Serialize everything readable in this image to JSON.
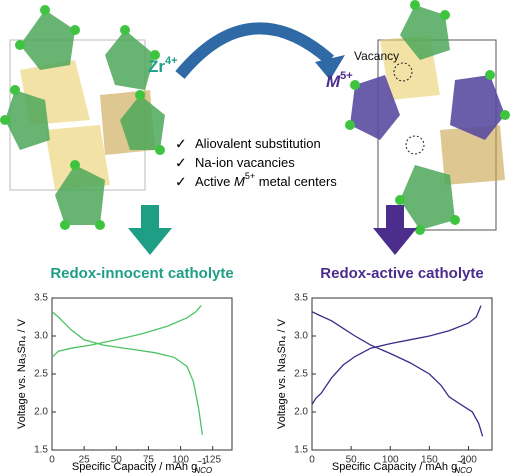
{
  "labels": {
    "zr": {
      "base": "Zr",
      "sup": "4+"
    },
    "m": {
      "base": "M",
      "sup": "5+"
    },
    "vacancy": "Vacancy"
  },
  "bullets": {
    "check": "✓",
    "items": [
      {
        "pre": "Aliovalent substitution"
      },
      {
        "pre": "Na-ion vacancies"
      },
      {
        "pre": "Active ",
        "em": "M",
        "sup": "5+",
        "post": " metal centers"
      }
    ]
  },
  "chart_data": [
    {
      "type": "line",
      "title": "Redox-innocent catholyte",
      "title_color": "#1f9e86",
      "y_label": "Voltage vs. Na₃Sn₄ / V",
      "x_label": {
        "text": "Specific Capacity / mAh g",
        "sup": "−1",
        "sub": "NCO"
      },
      "xlim": [
        0,
        140
      ],
      "xticks": [
        0,
        25,
        50,
        75,
        100,
        125
      ],
      "ylim": [
        1.5,
        3.5
      ],
      "yticks": [
        1.5,
        {
          "value": 2,
          "label": "2.0"
        },
        2.5,
        {
          "value": 3,
          "label": "3.0"
        },
        3.5
      ],
      "series": [
        {
          "color": "#4cc463",
          "x": [
            0,
            5,
            15,
            30,
            50,
            70,
            90,
            105,
            112,
            116
          ],
          "values": [
            2.72,
            2.8,
            2.84,
            2.88,
            2.95,
            3.03,
            3.13,
            3.24,
            3.32,
            3.4
          ]
        },
        {
          "color": "#4cc463",
          "x": [
            0,
            5,
            15,
            25,
            40,
            60,
            80,
            95,
            105,
            110,
            114,
            117
          ],
          "values": [
            3.32,
            3.25,
            3.08,
            2.95,
            2.88,
            2.83,
            2.78,
            2.72,
            2.6,
            2.4,
            2.05,
            1.7
          ]
        }
      ]
    },
    {
      "type": "line",
      "title": "Redox-active catholyte",
      "title_color": "#4a2d8c",
      "y_label": "Voltage vs. Na₃Sn₄ / V",
      "x_label": {
        "text": "Specific Capacity / mAh g",
        "sup": "−1",
        "sub": "NCO"
      },
      "xlim": [
        0,
        230
      ],
      "xticks": [
        0,
        50,
        100,
        150,
        200
      ],
      "ylim": [
        1.5,
        3.5
      ],
      "yticks": [
        1.5,
        {
          "value": 2,
          "label": "2.0"
        },
        2.5,
        {
          "value": 3,
          "label": "3.0"
        },
        3.5
      ],
      "series": [
        {
          "color": "#3a2d8a",
          "x": [
            0,
            5,
            12,
            25,
            40,
            55,
            75,
            100,
            125,
            150,
            175,
            200,
            210,
            216
          ],
          "values": [
            2.1,
            2.18,
            2.25,
            2.45,
            2.62,
            2.73,
            2.84,
            2.9,
            2.95,
            3.0,
            3.07,
            3.17,
            3.25,
            3.4
          ]
        },
        {
          "color": "#3a2d8a",
          "x": [
            0,
            10,
            25,
            40,
            55,
            75,
            100,
            125,
            150,
            165,
            175,
            190,
            205,
            213,
            218
          ],
          "values": [
            3.32,
            3.27,
            3.2,
            3.1,
            3.0,
            2.88,
            2.77,
            2.65,
            2.5,
            2.35,
            2.2,
            2.1,
            2.0,
            1.85,
            1.68
          ]
        }
      ]
    }
  ]
}
